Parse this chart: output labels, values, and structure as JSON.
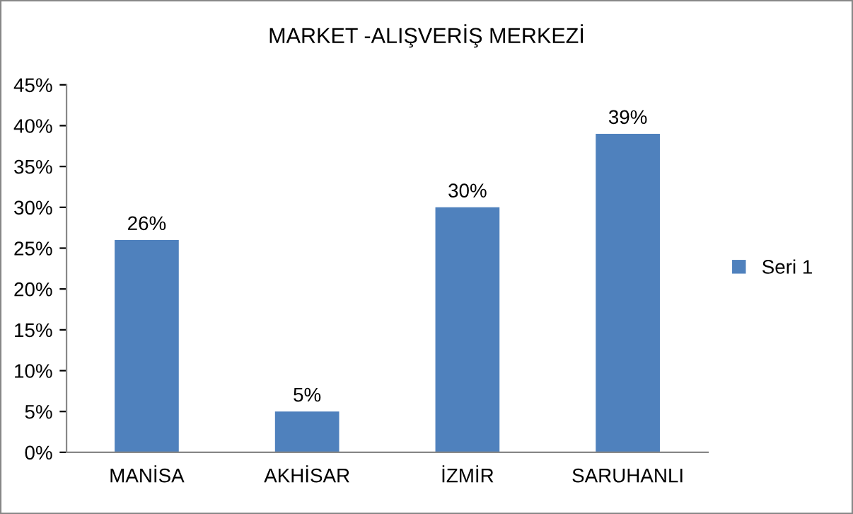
{
  "chart_data": {
    "type": "bar",
    "title": "MARKET -ALIŞVERİŞ MERKEZİ",
    "categories": [
      "MANİSA",
      "AKHİSAR",
      "İZMİR",
      "SARUHANLI"
    ],
    "series": [
      {
        "name": "Seri 1",
        "color": "#4f81bd",
        "values": [
          26,
          5,
          30,
          39
        ]
      }
    ],
    "value_labels": [
      "26%",
      "5%",
      "30%",
      "39%"
    ],
    "ylim": [
      0,
      45
    ],
    "yticks": [
      {
        "value": 0,
        "label": "0%"
      },
      {
        "value": 5,
        "label": "5%"
      },
      {
        "value": 10,
        "label": "10%"
      },
      {
        "value": 15,
        "label": "15%"
      },
      {
        "value": 20,
        "label": "20%"
      },
      {
        "value": 25,
        "label": "25%"
      },
      {
        "value": 30,
        "label": "30%"
      },
      {
        "value": 35,
        "label": "35%"
      },
      {
        "value": 40,
        "label": "40%"
      },
      {
        "value": 45,
        "label": "45%"
      }
    ],
    "grid": false,
    "legend": "right"
  }
}
